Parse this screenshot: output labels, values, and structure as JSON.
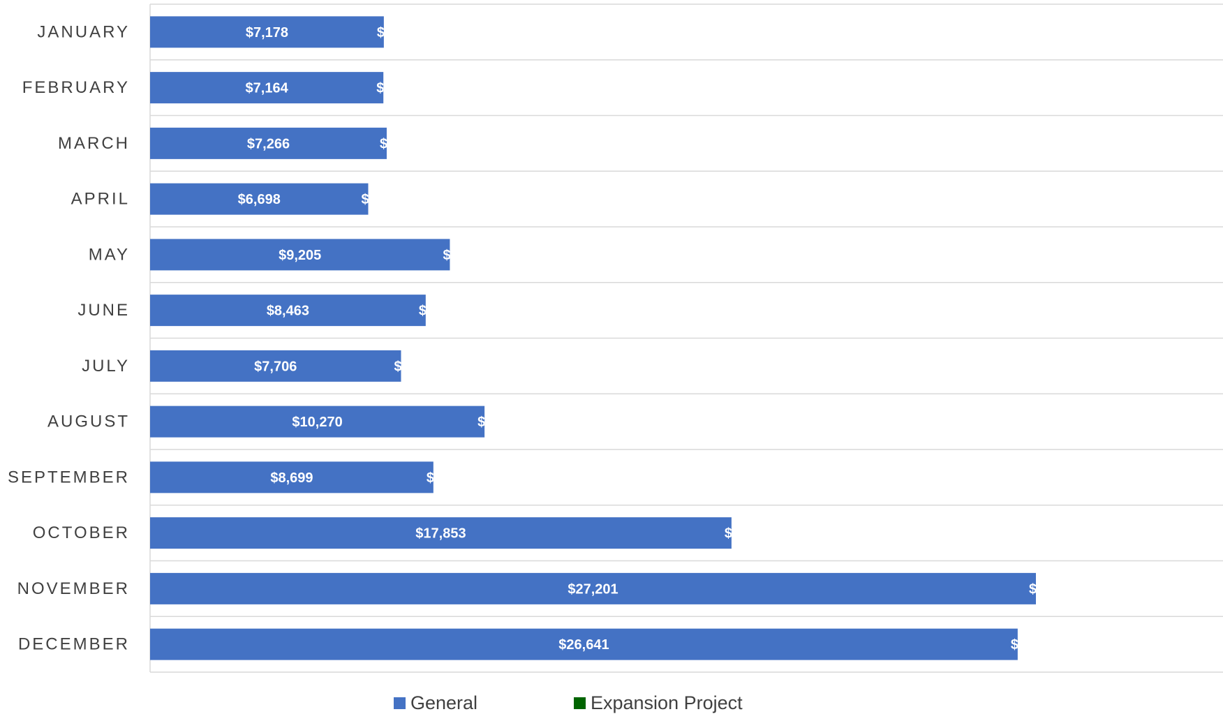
{
  "chart_data": {
    "type": "bar",
    "orientation": "horizontal",
    "stacked": true,
    "categories": [
      "JANUARY",
      "FEBRUARY",
      "MARCH",
      "APRIL",
      "MAY",
      "JUNE",
      "JULY",
      "AUGUST",
      "SEPTEMBER",
      "OCTOBER",
      "NOVEMBER",
      "DECEMBER"
    ],
    "series": [
      {
        "name": "General",
        "color": "#4472C4",
        "values": [
          7178,
          7164,
          7266,
          6698,
          9205,
          8463,
          7706,
          10270,
          8699,
          17853,
          27201,
          26641
        ],
        "labels": [
          "$7,178",
          "$7,164",
          "$7,266",
          "$6,698",
          "$9,205",
          "$8,463",
          "$7,706",
          "$10,270",
          "$8,699",
          "$17,853",
          "$27,201",
          "$26,641"
        ]
      },
      {
        "name": "Expansion Project",
        "color": "#006400",
        "values": [
          0,
          0,
          0,
          0,
          0,
          0,
          0,
          0,
          0,
          0,
          0,
          0
        ],
        "labels": [
          "$",
          "$",
          "$",
          "$",
          "$",
          "$",
          "$",
          "$",
          "$",
          "$",
          "$",
          "$"
        ]
      }
    ],
    "xlim": [
      0,
      30000
    ],
    "title": "",
    "xlabel": "",
    "ylabel": "",
    "grid": true,
    "legend_position": "bottom"
  }
}
